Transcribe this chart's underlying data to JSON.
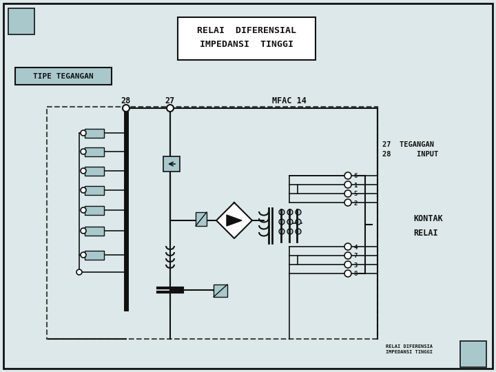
{
  "title_line1": "RELAI  DIFERENSIAL",
  "title_line2": "IMPEDANSI  TINGGI",
  "subtitle_box": "TIPE TEGANGAN",
  "label_28": "28",
  "label_27": "27",
  "label_mfac": "MFAC 14",
  "label_27_teg": "27  TEGANGAN",
  "label_28_inp": "28      INPUT",
  "label_kontak": "KONTAK\nRELAI",
  "label_footer": "RELAI DIFERENSIA\nIMPEDANSI TINGGI",
  "contact_nums_top": [
    "6",
    "1",
    "5",
    "2"
  ],
  "contact_nums_bot": [
    "4",
    "7",
    "3",
    "8"
  ],
  "bg_color": "#dce8ea",
  "box_color": "#a8c8cc",
  "line_color": "#111111",
  "dashed_color": "#444444",
  "white": "#ffffff"
}
